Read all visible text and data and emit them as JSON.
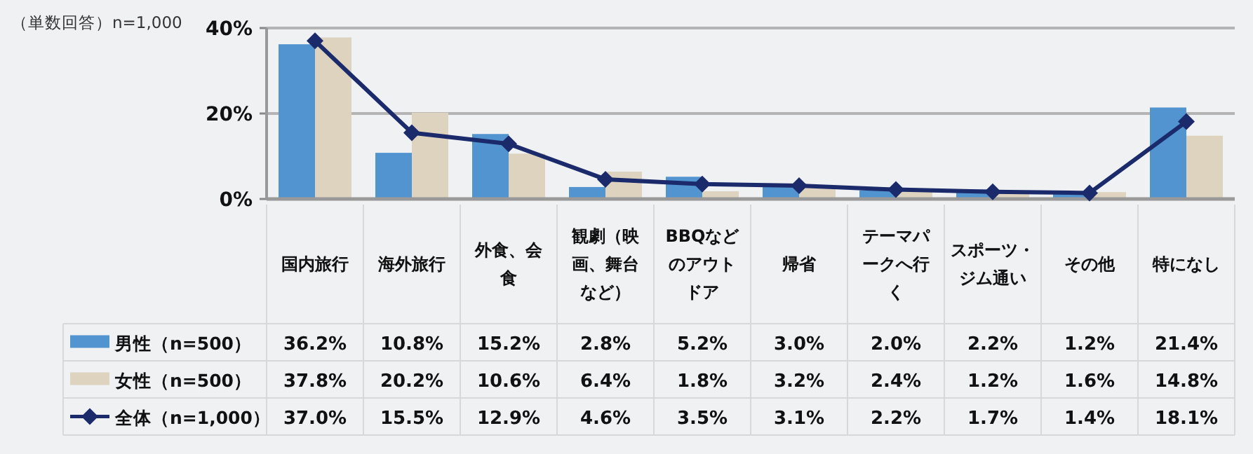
{
  "chart_data": {
    "type": "bar",
    "annotations": [
      "（単数回答）n=1,000"
    ],
    "categories": [
      "国内旅行",
      "海外旅行",
      "外食、会食",
      "観劇（映画、舞台など）",
      "BBQなどのアウトドア",
      "帰省",
      "テーマパークへ行く",
      "スポーツ・ジム通い",
      "その他",
      "特になし"
    ],
    "series": [
      {
        "name": "男性（n=500）",
        "color": "#5294d0",
        "values": [
          36.2,
          10.8,
          15.2,
          2.8,
          5.2,
          3.0,
          2.0,
          2.2,
          1.2,
          21.4
        ],
        "value_labels": [
          "36.2%",
          "10.8%",
          "15.2%",
          "2.8%",
          "5.2%",
          "3.0%",
          "2.0%",
          "2.2%",
          "1.2%",
          "21.4%"
        ]
      },
      {
        "name": "女性（n=500）",
        "color": "#ddd3bf",
        "values": [
          37.8,
          20.2,
          10.6,
          6.4,
          1.8,
          3.2,
          2.4,
          1.2,
          1.6,
          14.8
        ],
        "value_labels": [
          "37.8%",
          "20.2%",
          "10.6%",
          "6.4%",
          "1.8%",
          "3.2%",
          "2.4%",
          "1.2%",
          "1.6%",
          "14.8%"
        ]
      },
      {
        "name": "全体（n=1,000）",
        "type": "line",
        "color": "#1a2a6a",
        "marker": "diamond",
        "values": [
          37.0,
          15.5,
          12.9,
          4.6,
          3.5,
          3.1,
          2.2,
          1.7,
          1.4,
          18.1
        ],
        "value_labels": [
          "37.0%",
          "15.5%",
          "12.9%",
          "4.6%",
          "3.5%",
          "3.1%",
          "2.2%",
          "1.7%",
          "1.4%",
          "18.1%"
        ]
      }
    ],
    "ylim": [
      0,
      40
    ],
    "yticks": [
      {
        "value": 0,
        "label": "0%"
      },
      {
        "value": 20,
        "label": "20%"
      },
      {
        "value": 40,
        "label": "40%"
      }
    ],
    "grid": "y",
    "legend": "bottom left"
  }
}
